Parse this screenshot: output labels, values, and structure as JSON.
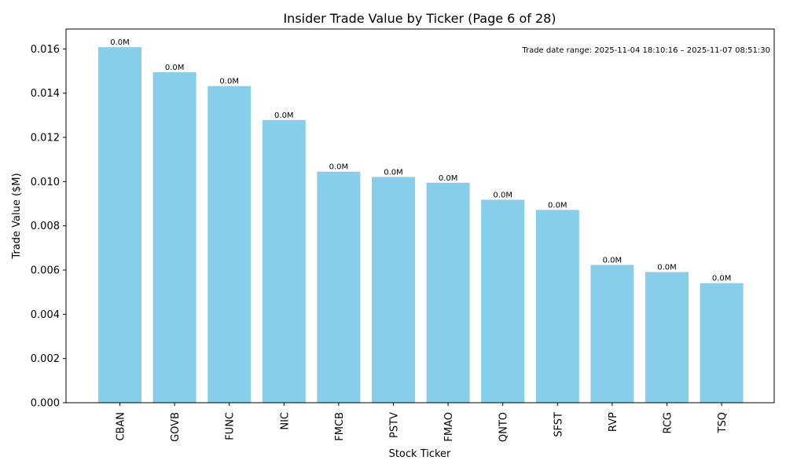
{
  "chart_data": {
    "type": "bar",
    "title": "Insider Trade Value by Ticker (Page 6 of 28)",
    "xlabel": "Stock Ticker",
    "ylabel": "Trade Value ($M)",
    "categories": [
      "CBAN",
      "GOVB",
      "FUNC",
      "NIC",
      "FMCB",
      "PSTV",
      "FMAO",
      "QNTO",
      "SFST",
      "RVP",
      "RCG",
      "TSQ"
    ],
    "values": [
      0.01608,
      0.01495,
      0.01432,
      0.01279,
      0.01045,
      0.01021,
      0.00995,
      0.00918,
      0.00872,
      0.00623,
      0.00591,
      0.00541
    ],
    "bar_labels": [
      "0.0M",
      "0.0M",
      "0.0M",
      "0.0M",
      "0.0M",
      "0.0M",
      "0.0M",
      "0.0M",
      "0.0M",
      "0.0M",
      "0.0M",
      "0.0M"
    ],
    "ylim": [
      0,
      0.0169
    ],
    "yticks": [
      "0.000",
      "0.002",
      "0.004",
      "0.006",
      "0.008",
      "0.010",
      "0.012",
      "0.014",
      "0.016"
    ],
    "annotation": "Trade date range: 2025-11-04 18:10:16 – 2025-11-07 08:51:30",
    "bar_color": "#87ceeb",
    "grid": false,
    "legend": "none"
  }
}
